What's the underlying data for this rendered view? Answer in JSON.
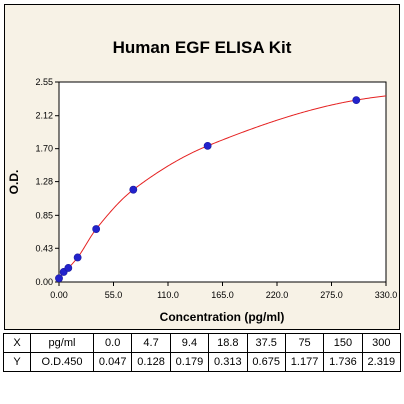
{
  "chart_data": {
    "type": "scatter",
    "title": "Human EGF ELISA Kit",
    "xlabel": "Concentration (pg/ml)",
    "ylabel": "O.D.",
    "xlim": [
      0,
      330
    ],
    "ylim": [
      0,
      2.55
    ],
    "xticks": [
      "0.00",
      "55.0",
      "110.0",
      "165.0",
      "220.0",
      "275.0",
      "330.0"
    ],
    "yticks": [
      "0.00",
      "0.43",
      "0.85",
      "1.28",
      "1.70",
      "2.12",
      "2.55"
    ],
    "grid": false,
    "series": [
      {
        "x": [
          0.0,
          4.7,
          9.4,
          18.8,
          37.5,
          75,
          150,
          300
        ],
        "y": [
          0.047,
          0.128,
          0.179,
          0.313,
          0.675,
          1.177,
          1.736,
          2.319
        ],
        "marker_color": "#2222cc",
        "line_color": "#e52222"
      }
    ]
  },
  "table": {
    "rows": [
      {
        "label": "X",
        "unit": "pg/ml",
        "values": [
          "0.0",
          "4.7",
          "9.4",
          "18.8",
          "37.5",
          "75",
          "150",
          "300"
        ]
      },
      {
        "label": "Y",
        "unit": "O.D.450",
        "values": [
          "0.047",
          "0.128",
          "0.179",
          "0.313",
          "0.675",
          "1.177",
          "1.736",
          "2.319"
        ]
      }
    ]
  },
  "colors": {
    "panel_background": "#f7f2e6",
    "plot_background": "#ffffff",
    "curve": "#e52222",
    "marker": "#2222cc"
  }
}
